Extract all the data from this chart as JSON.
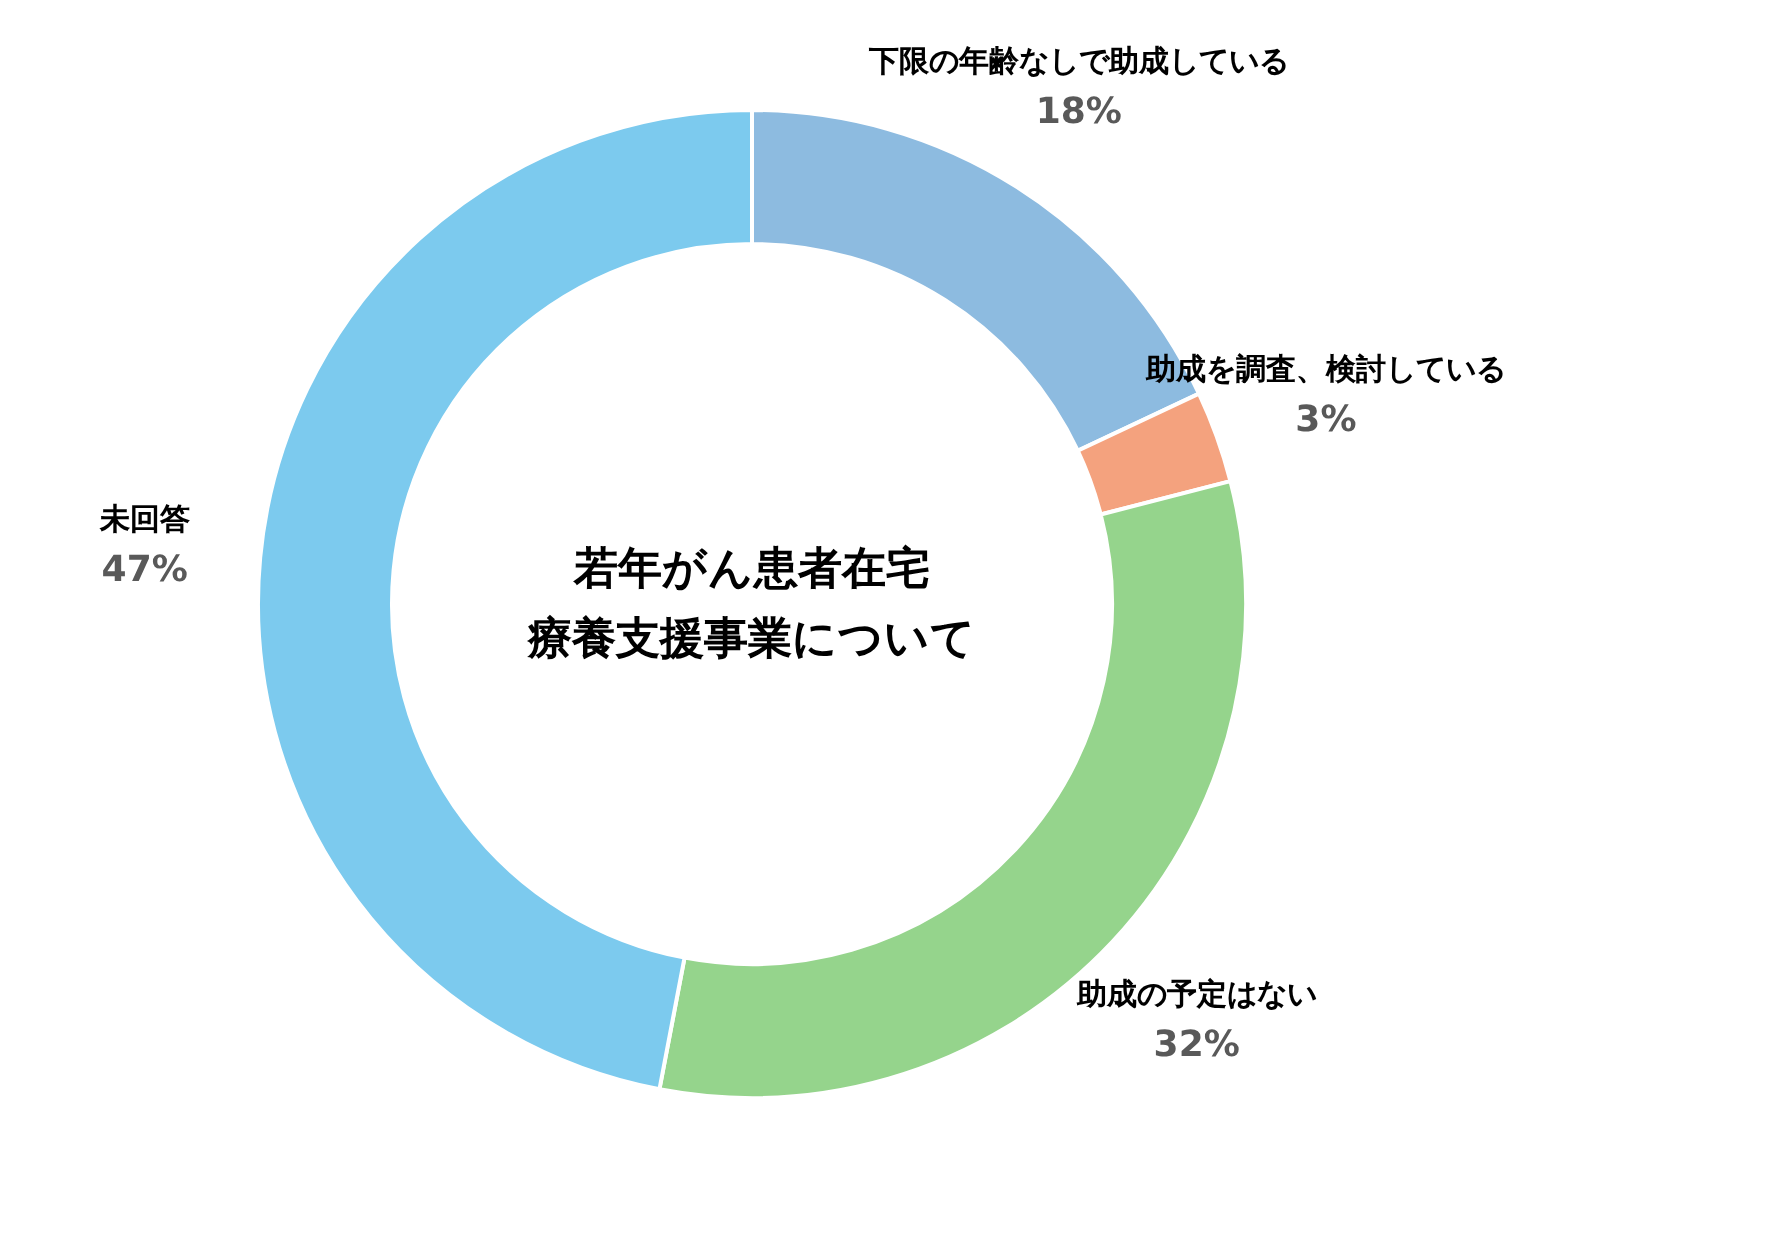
{
  "chart_data": {
    "type": "donut",
    "title": "若年がん患者在宅療養支援事業について",
    "categories": [
      "下限の年齢なしで助成している",
      "助成を調査、検討している",
      "助成の予定はない",
      "未回答"
    ],
    "values": [
      18,
      3,
      32,
      47
    ],
    "value_labels": [
      "18%",
      "3%",
      "32%",
      "47%"
    ],
    "colors": [
      "#8dbbe0",
      "#f4a27e",
      "#95d48c",
      "#7ccaee"
    ]
  }
}
